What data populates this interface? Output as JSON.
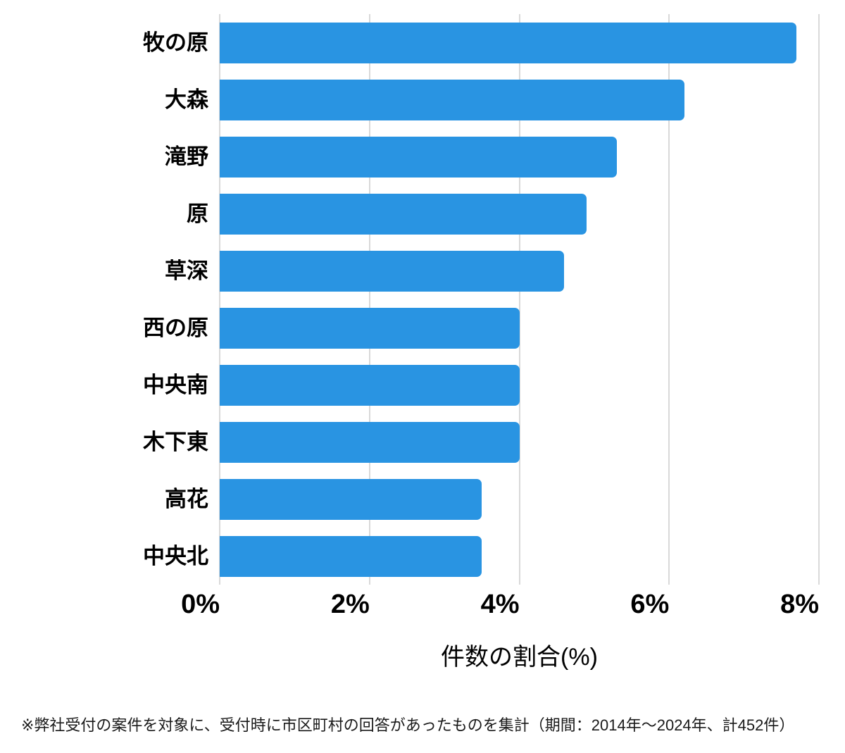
{
  "chart_data": {
    "type": "bar",
    "orientation": "horizontal",
    "title": "",
    "categories": [
      "牧の原",
      "大森",
      "滝野",
      "原",
      "草深",
      "西の原",
      "中央南",
      "木下東",
      "高花",
      "中央北"
    ],
    "values": [
      7.7,
      6.2,
      5.3,
      4.9,
      4.6,
      4.0,
      4.0,
      4.0,
      3.5,
      3.5
    ],
    "unit": "%",
    "xlabel": "件数の割合(%)",
    "xlim": [
      0,
      8
    ],
    "xticks": [
      {
        "value": 0,
        "label": "0%"
      },
      {
        "value": 2,
        "label": "2%"
      },
      {
        "value": 4,
        "label": "4%"
      },
      {
        "value": 6,
        "label": "6%"
      },
      {
        "value": 8,
        "label": "8%"
      }
    ],
    "grid": true,
    "legend": false,
    "bars_start_at_axis": true,
    "colors": {
      "bar": "#2994e2",
      "gridline": "#d9d9d9",
      "text": "#000000"
    }
  },
  "footnote": "※弊社受付の案件を対象に、受付時に市区町村の回答があったものを集計（期間：2014年～2024年、計452件）"
}
